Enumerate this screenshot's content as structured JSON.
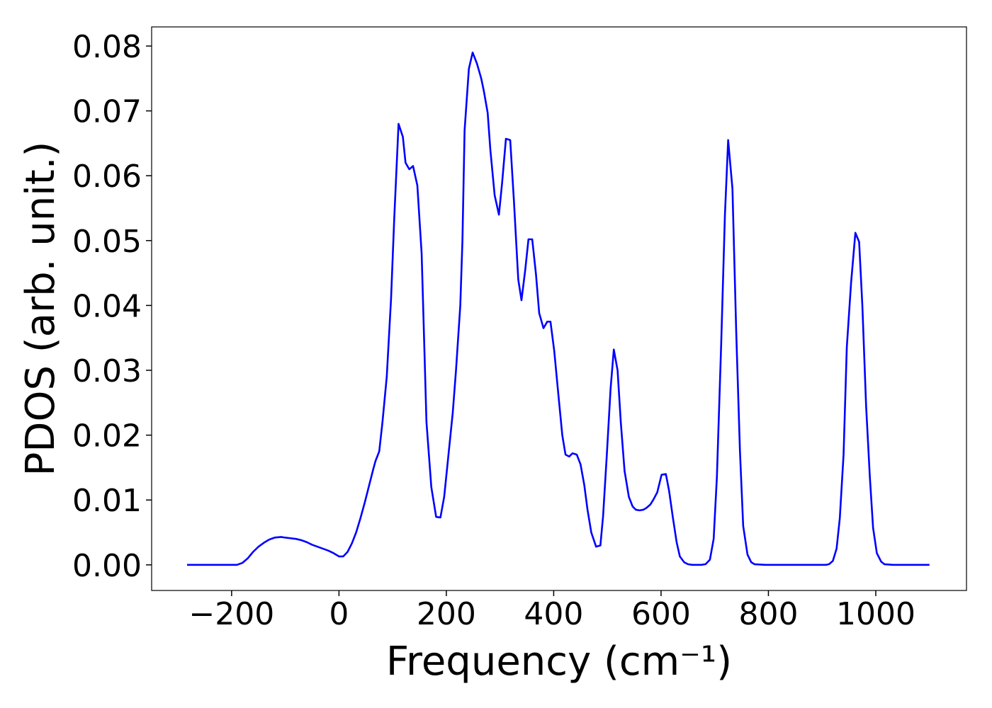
{
  "chart_data": {
    "type": "line",
    "xlabel": "Frequency (cm⁻¹)",
    "ylabel": "PDOS (arb. unit.)",
    "color": "#0000ff",
    "x": [
      -283,
      -190,
      -180,
      -170,
      -160,
      -150,
      -140,
      -130,
      -120,
      -108,
      -100,
      -90,
      -80,
      -70,
      -60,
      -50,
      -40,
      -30,
      -20,
      -10,
      0,
      8,
      16,
      24,
      32,
      40,
      48,
      56,
      64,
      68,
      75,
      81,
      89,
      97,
      103,
      111,
      119,
      124,
      131,
      138,
      146,
      154,
      163,
      172,
      181,
      189,
      196,
      204,
      212,
      218,
      226,
      230,
      234,
      242,
      249,
      257,
      265,
      270,
      277,
      282,
      290,
      298,
      304,
      311,
      319,
      326,
      334,
      340,
      347,
      353,
      360,
      367,
      373,
      381,
      388,
      394,
      401,
      409,
      416,
      422,
      429,
      435,
      443,
      450,
      457,
      463,
      470,
      479,
      487,
      492,
      499,
      506,
      512,
      519,
      525,
      532,
      540,
      547,
      553,
      560,
      567,
      573,
      580,
      586,
      593,
      601,
      609,
      615,
      622,
      629,
      635,
      643,
      650,
      658,
      675,
      683,
      691,
      698,
      704,
      712,
      719,
      725,
      733,
      740,
      747,
      753,
      761,
      768,
      774,
      794,
      907,
      913,
      920,
      927,
      933,
      940,
      946,
      954,
      962,
      969,
      975,
      982,
      989,
      995,
      1002,
      1010,
      1016,
      1032,
      1100
    ],
    "values": [
      0,
      0,
      0.0003,
      0.001,
      0.002,
      0.0028,
      0.0034,
      0.0039,
      0.0042,
      0.0043,
      0.0042,
      0.0041,
      0.004,
      0.0038,
      0.0035,
      0.0031,
      0.0028,
      0.0025,
      0.0022,
      0.0018,
      0.0013,
      0.0013,
      0.002,
      0.0033,
      0.005,
      0.0072,
      0.0096,
      0.0122,
      0.0148,
      0.016,
      0.0175,
      0.022,
      0.029,
      0.041,
      0.0535,
      0.068,
      0.066,
      0.062,
      0.061,
      0.0615,
      0.0585,
      0.048,
      0.022,
      0.012,
      0.0074,
      0.0073,
      0.0105,
      0.017,
      0.0235,
      0.03,
      0.04,
      0.05,
      0.067,
      0.0765,
      0.079,
      0.0773,
      0.075,
      0.073,
      0.0697,
      0.064,
      0.057,
      0.054,
      0.059,
      0.0657,
      0.0655,
      0.056,
      0.044,
      0.0408,
      0.0455,
      0.0502,
      0.0502,
      0.0448,
      0.0388,
      0.0365,
      0.0375,
      0.0375,
      0.033,
      0.026,
      0.02,
      0.017,
      0.0167,
      0.0172,
      0.017,
      0.0155,
      0.0123,
      0.0085,
      0.005,
      0.0028,
      0.003,
      0.0075,
      0.017,
      0.0272,
      0.0332,
      0.03,
      0.022,
      0.0145,
      0.0105,
      0.009,
      0.0085,
      0.0084,
      0.0085,
      0.0088,
      0.0093,
      0.0101,
      0.0112,
      0.0139,
      0.014,
      0.0114,
      0.0073,
      0.0035,
      0.0013,
      0.0004,
      0.0001,
      0,
      0,
      0.0001,
      0.0008,
      0.004,
      0.0135,
      0.034,
      0.054,
      0.0655,
      0.058,
      0.036,
      0.0175,
      0.006,
      0.0016,
      0.0004,
      0.0001,
      0,
      0,
      0.0001,
      0.0006,
      0.0025,
      0.0072,
      0.017,
      0.0335,
      0.0435,
      0.0512,
      0.0498,
      0.04,
      0.0245,
      0.0135,
      0.0057,
      0.0018,
      0.0005,
      0.0001,
      0,
      0
    ],
    "xlim": [
      -349,
      1169
    ],
    "ylim": [
      -0.00395,
      0.08295
    ],
    "xticks": [
      {
        "value": -200,
        "label": "−200"
      },
      0,
      200,
      400,
      600,
      800,
      1000
    ],
    "yticks": [
      {
        "value": 0,
        "label": "0.00"
      },
      0.01,
      0.02,
      0.03,
      0.04,
      0.05,
      0.06,
      0.07,
      0.08
    ]
  }
}
